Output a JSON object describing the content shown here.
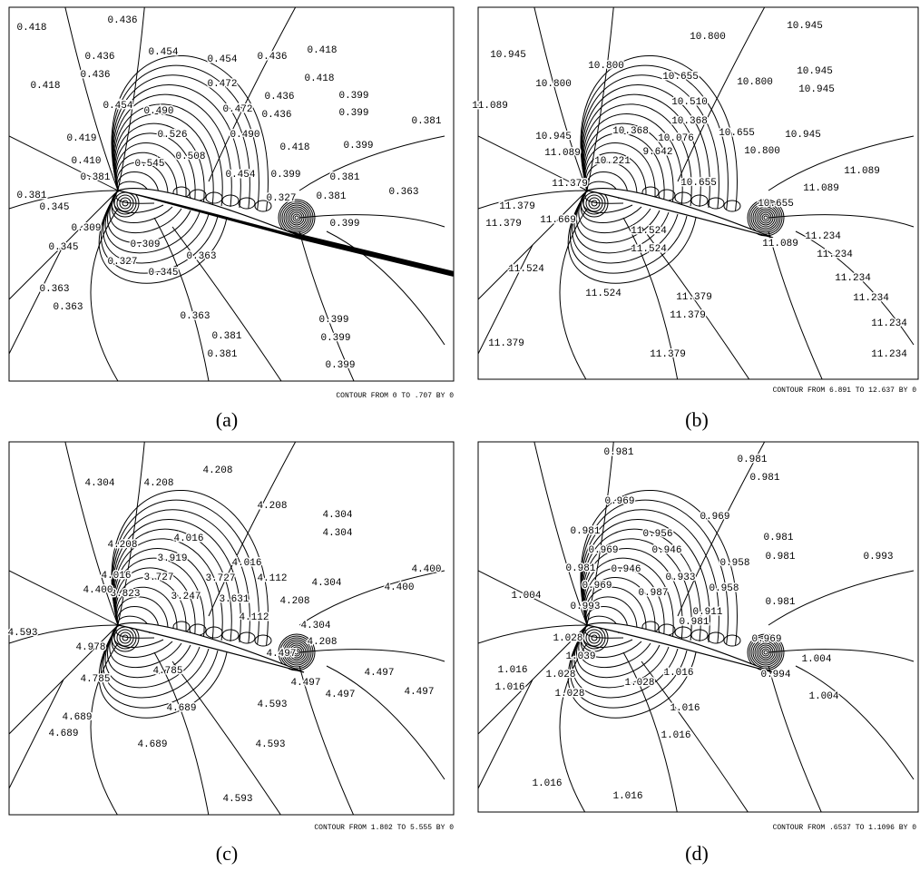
{
  "panels": [
    {
      "label": "(a)",
      "caption": "CONTOUR FROM 0 TO .707 BY 0",
      "contour_labels": [
        "0.418",
        "0.436",
        "0.436",
        "0.454",
        "0.454",
        "0.436",
        "0.418",
        "0.418",
        "0.436",
        "0.472",
        "0.418",
        "0.454",
        "0.490",
        "0.472",
        "0.436",
        "0.399",
        "0.436",
        "0.399",
        "0.381",
        "0.526",
        "0.419",
        "0.490",
        "0.508",
        "0.418",
        "0.399",
        "0.410",
        "0.545",
        "0.381",
        "0.454",
        "0.399",
        "0.381",
        "0.381",
        "0.327",
        "0.381",
        "0.363",
        "0.345",
        "0.399",
        "0.309",
        "0.309",
        "0.345",
        "0.327",
        "0.363",
        "0.345",
        "0.363",
        "0.363",
        "0.363",
        "0.399",
        "0.381",
        "0.399",
        "0.381",
        "0.399"
      ]
    },
    {
      "label": "(b)",
      "caption": "CONTOUR FROM 6.891 TO 12.637 BY 0",
      "contour_labels": [
        "10.945",
        "10.800",
        "10.945",
        "10.800",
        "10.655",
        "10.800",
        "10.945",
        "10.800",
        "10.945",
        "11.089",
        "10.510",
        "10.368",
        "10.368",
        "10.655",
        "10.945",
        "10.945",
        "10.076",
        "9.642",
        "10.800",
        "11.089",
        "10.221",
        "11.089",
        "11.379",
        "10.655",
        "11.089",
        "11.379",
        "10.655",
        "11.379",
        "11.669",
        "11.524",
        "11.089",
        "11.234",
        "11.524",
        "11.234",
        "11.524",
        "11.234",
        "11.524",
        "11.379",
        "11.234",
        "11.379",
        "11.234",
        "11.379",
        "11.379",
        "11.234"
      ]
    },
    {
      "label": "(c)",
      "caption": "CONTOUR FROM 1.802 TO 5.555 BY 0",
      "contour_labels": [
        "4.208",
        "4.304",
        "4.208",
        "4.208",
        "4.304",
        "4.304",
        "4.016",
        "4.208",
        "4.016",
        "3.919",
        "4.016",
        "3.727",
        "3.727",
        "4.112",
        "4.400",
        "3.823",
        "3.631",
        "4.400",
        "4.400",
        "3.247",
        "4.304",
        "4.208",
        "4.112",
        "4.304",
        "4.593",
        "4.208",
        "4.497",
        "4.978",
        "4.785",
        "4.785",
        "4.497",
        "4.497",
        "4.497",
        "4.497",
        "4.689",
        "4.593",
        "4.689",
        "4.689",
        "4.689",
        "4.593",
        "4.593"
      ]
    },
    {
      "label": "(d)",
      "caption": "CONTOUR FROM .6537 TO 1.1096 BY 0",
      "contour_labels": [
        "0.981",
        "0.981",
        "0.981",
        "0.969",
        "0.969",
        "0.981",
        "0.981",
        "0.956",
        "0.981",
        "0.993",
        "0.969",
        "0.946",
        "0.958",
        "0.981",
        "0.946",
        "0.933",
        "0.969",
        "0.958",
        "0.993",
        "1.004",
        "0.987",
        "0.911",
        "0.981",
        "0.981",
        "0.969",
        "1.028",
        "1.004",
        "1.039",
        "1.016",
        "1.016",
        "1.028",
        "0.994",
        "1.016",
        "1.028",
        "1.028",
        "1.004",
        "1.016",
        "1.016",
        "1.016",
        "1.016"
      ]
    }
  ]
}
